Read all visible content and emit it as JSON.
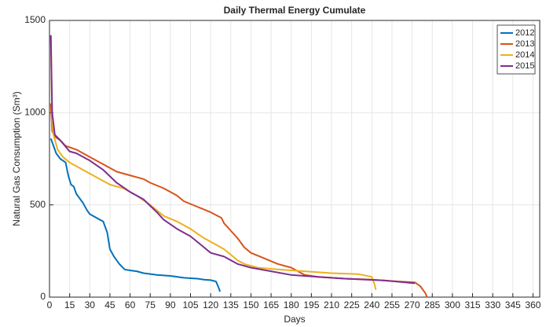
{
  "chart_data": {
    "type": "line",
    "title": "Daily Thermal Energy Cumulate",
    "x_label": "Days",
    "y_label": "Natural Gas Consumption (Sm³)",
    "xlim": [
      0,
      365
    ],
    "xticks": [
      0,
      15,
      30,
      45,
      60,
      75,
      90,
      105,
      120,
      135,
      150,
      165,
      180,
      195,
      210,
      225,
      240,
      255,
      270,
      285,
      300,
      315,
      330,
      345,
      360
    ],
    "ylim": [
      0,
      1500
    ],
    "yticks": [
      0,
      500,
      1000,
      1500
    ],
    "grid": true,
    "legend": "northeast",
    "series": [
      {
        "name": "2012",
        "color": "#0072bd",
        "x": [
          1,
          3,
          5,
          8,
          12,
          14,
          16,
          18,
          20,
          25,
          28,
          30,
          35,
          40,
          43,
          45,
          48,
          52,
          56,
          60,
          65,
          70,
          80,
          90,
          100,
          110,
          115,
          120,
          124,
          126,
          127
        ],
        "values": [
          860,
          820,
          780,
          750,
          730,
          660,
          610,
          600,
          560,
          510,
          470,
          450,
          430,
          410,
          350,
          260,
          220,
          180,
          150,
          145,
          140,
          130,
          120,
          115,
          105,
          100,
          95,
          92,
          85,
          50,
          30
        ]
      },
      {
        "name": "2013",
        "color": "#d95319",
        "x": [
          1,
          2,
          4,
          8,
          12,
          20,
          30,
          40,
          50,
          60,
          70,
          75,
          85,
          95,
          100,
          110,
          120,
          128,
          130,
          135,
          140,
          145,
          150,
          160,
          170,
          180,
          190,
          200,
          220,
          240,
          260,
          272,
          276,
          280,
          281
        ],
        "values": [
          1050,
          900,
          870,
          850,
          820,
          800,
          760,
          720,
          680,
          660,
          640,
          620,
          590,
          550,
          520,
          490,
          460,
          430,
          400,
          360,
          320,
          270,
          240,
          210,
          180,
          160,
          120,
          110,
          100,
          95,
          85,
          80,
          60,
          20,
          0
        ]
      },
      {
        "name": "2014",
        "color": "#edb120",
        "x": [
          1,
          2,
          3,
          6,
          10,
          15,
          25,
          35,
          45,
          55,
          65,
          75,
          85,
          95,
          105,
          115,
          125,
          130,
          135,
          140,
          145,
          155,
          170,
          190,
          210,
          230,
          240,
          242,
          243
        ],
        "values": [
          1420,
          950,
          880,
          800,
          760,
          730,
          690,
          650,
          610,
          590,
          550,
          500,
          440,
          410,
          370,
          320,
          280,
          260,
          230,
          200,
          180,
          160,
          150,
          140,
          130,
          125,
          110,
          70,
          40
        ]
      },
      {
        "name": "2015",
        "color": "#7e2f8e",
        "x": [
          1,
          2,
          4,
          8,
          15,
          20,
          30,
          40,
          50,
          60,
          70,
          80,
          85,
          95,
          105,
          110,
          115,
          120,
          130,
          140,
          150,
          165,
          180,
          200,
          220,
          250,
          265,
          272
        ],
        "values": [
          1420,
          1000,
          880,
          850,
          790,
          780,
          740,
          690,
          620,
          570,
          530,
          460,
          420,
          370,
          330,
          300,
          270,
          240,
          220,
          180,
          160,
          140,
          120,
          110,
          100,
          90,
          80,
          75
        ]
      }
    ]
  }
}
